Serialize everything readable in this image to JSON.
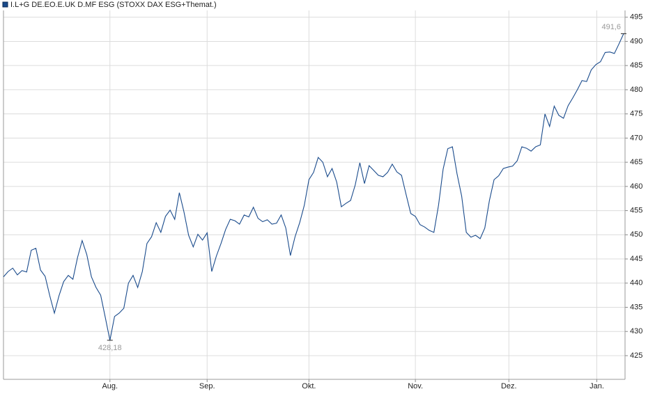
{
  "chart_data": {
    "type": "line",
    "x": [
      0,
      1,
      2,
      3,
      4,
      5,
      6,
      7,
      8,
      9,
      10,
      11,
      12,
      13,
      14,
      15,
      16,
      17,
      18,
      19,
      20,
      21,
      22,
      23,
      24,
      25,
      26,
      27,
      28,
      29,
      30,
      31,
      32,
      33,
      34,
      35,
      36,
      37,
      38,
      39,
      40,
      41,
      42,
      43,
      44,
      45,
      46,
      47,
      48,
      49,
      50,
      51,
      52,
      53,
      54,
      55,
      56,
      57,
      58,
      59,
      60,
      61,
      62,
      63,
      64,
      65,
      66,
      67,
      68,
      69,
      70,
      71,
      72,
      73,
      74,
      75,
      76,
      77,
      78,
      79,
      80,
      81,
      82,
      83,
      84,
      85,
      86,
      87,
      88,
      89,
      90,
      91,
      92,
      93,
      94,
      95,
      96,
      97,
      98,
      99,
      100,
      101,
      102,
      103,
      104,
      105,
      106,
      107,
      108,
      109,
      110,
      111,
      112,
      113,
      114,
      115,
      116,
      117,
      118,
      119,
      120,
      121,
      122,
      123,
      124,
      125,
      126,
      127,
      128,
      129,
      130,
      131,
      132,
      133,
      134
    ],
    "series": [
      {
        "name": "I.L+G DE.EO.E.UK D.MF ESG (STOXX DAX ESG+Themat.)",
        "color": "#1a4b8c",
        "values": [
          441.3,
          442.4,
          443.1,
          441.7,
          442.6,
          442.3,
          446.8,
          447.2,
          442.7,
          441.4,
          437.4,
          433.8,
          437.4,
          440.3,
          441.6,
          440.8,
          445.3,
          448.8,
          445.9,
          441.3,
          439.1,
          437.5,
          432.9,
          428.18,
          433.1,
          433.8,
          434.8,
          440.0,
          441.6,
          439.1,
          442.4,
          448.2,
          449.6,
          452.5,
          450.5,
          453.8,
          455.1,
          453.2,
          458.7,
          454.7,
          449.9,
          447.5,
          450.1,
          448.9,
          450.4,
          442.4,
          445.6,
          448.2,
          451.1,
          453.2,
          452.9,
          452.2,
          454.1,
          453.7,
          455.7,
          453.4,
          452.7,
          453.1,
          452.2,
          452.4,
          454.1,
          451.4,
          445.7,
          449.6,
          452.5,
          456.1,
          461.4,
          462.9,
          466.0,
          465.0,
          462.0,
          463.7,
          460.9,
          455.8,
          456.5,
          457.1,
          460.3,
          464.9,
          460.6,
          464.3,
          463.3,
          462.3,
          462.0,
          462.9,
          464.6,
          463.0,
          462.3,
          458.3,
          454.4,
          453.8,
          452.1,
          451.6,
          450.9,
          450.5,
          456.1,
          463.6,
          467.8,
          468.2,
          462.6,
          458.0,
          450.5,
          449.5,
          449.9,
          449.2,
          451.4,
          457.1,
          461.4,
          462.2,
          463.7,
          464.0,
          464.2,
          465.3,
          468.2,
          467.9,
          467.3,
          468.2,
          468.6,
          475.0,
          472.4,
          476.6,
          474.7,
          474.1,
          476.7,
          478.3,
          480.0,
          481.9,
          481.7,
          484.1,
          485.2,
          485.8,
          487.7,
          487.8,
          487.5,
          489.5,
          491.6
        ]
      }
    ],
    "annotations": [
      {
        "label": "428,18",
        "x": 23,
        "y": 428.18
      },
      {
        "label": "491,6",
        "x": 134,
        "y": 491.6
      }
    ],
    "xlim": [
      0,
      134.3
    ],
    "xticks": [
      {
        "value": 23,
        "label": "Aug."
      },
      {
        "value": 44,
        "label": "Sep."
      },
      {
        "value": 66,
        "label": "Okt."
      },
      {
        "value": 89,
        "label": "Nov."
      },
      {
        "value": 109.2,
        "label": "Dez."
      },
      {
        "value": 128.2,
        "label": "Jan."
      }
    ],
    "ylim": [
      420.1,
      496.4
    ],
    "yticks": [
      425,
      430,
      435,
      440,
      445,
      450,
      455,
      460,
      465,
      470,
      475,
      480,
      485,
      490,
      495
    ],
    "grid": true
  }
}
